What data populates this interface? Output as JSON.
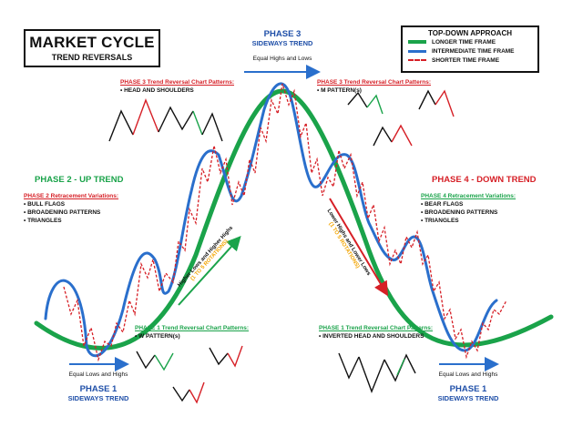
{
  "title": {
    "main": "MARKET CYCLE",
    "sub": "TREND REVERSALS"
  },
  "legend": {
    "title": "TOP-DOWN APPROACH",
    "items": [
      {
        "label": "LONGER TIME FRAME",
        "color": "#1aa34a"
      },
      {
        "label": "INTERMEDIATE TIME FRAME",
        "color": "#2a6fcc"
      },
      {
        "label": "SHORTER TIME FRAME",
        "color": "#d61f26"
      }
    ]
  },
  "phase3": {
    "title": "PHASE 3",
    "subtitle": "SIDEWAYS TREND",
    "note": "Equal Highs and Lows"
  },
  "phase2": {
    "title": "PHASE 2 - UP TREND",
    "heading": "PHASE 2 Retracement Variations:",
    "items": [
      "• BULL FLAGS",
      "• BROADENING PATTERNS",
      "• TRIANGLES"
    ]
  },
  "phase4": {
    "title": "PHASE 4 - DOWN TREND",
    "heading": "PHASE 4 Retracement Variations:",
    "items": [
      "• BEAR FLAGS",
      "• BROADENING PATTERNS",
      "• TRIANGLES"
    ]
  },
  "phase3_left": {
    "heading": "PHASE 3 Trend Reversal Chart Patterns:",
    "items": [
      "• HEAD AND SHOULDERS"
    ]
  },
  "phase3_right": {
    "heading": "PHASE 3 Trend Reversal Chart Patterns:",
    "items": [
      "• M PATTERN(s)"
    ]
  },
  "phase1_left": {
    "heading": "PHASE 1 Trend Reversal Chart Patterns:",
    "items": [
      "• W PATTERN(s)"
    ]
  },
  "phase1_right": {
    "heading": "PHASE 1 Trend Reversal Chart Patterns:",
    "items": [
      "• INVERTED HEAD AND SHOULDERS"
    ]
  },
  "phase1_bl": {
    "note": "Equal Lows and Highs",
    "title": "PHASE 1",
    "subtitle": "SIDEWAYS TREND"
  },
  "phase1_br": {
    "note": "Equal Lows and Highs",
    "title": "PHASE 1",
    "subtitle": "SIDEWAYS TREND"
  },
  "up_arrow": {
    "label": "Higher Lows and Higher Highs",
    "sublabel": "(1 TO 5 ROTATIONS)"
  },
  "down_arrow": {
    "label": "Lower Highs and Lower Lows",
    "sublabel": "(1 TO 5 ROTATIONS)"
  }
}
